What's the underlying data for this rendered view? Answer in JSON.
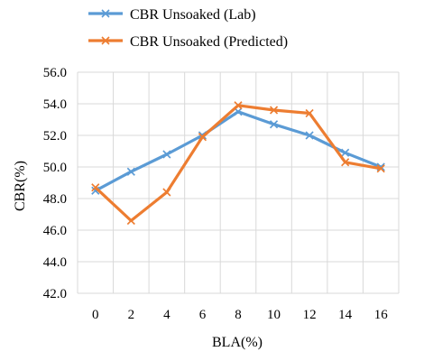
{
  "chart_data": {
    "type": "line",
    "x": [
      0,
      2,
      4,
      6,
      8,
      10,
      12,
      14,
      16
    ],
    "series": [
      {
        "name": "CBR Unsoaked (Lab)",
        "color": "#5b9bd5",
        "marker": "x",
        "values": [
          48.5,
          49.7,
          50.8,
          52.0,
          53.5,
          52.7,
          52.0,
          50.9,
          50.0
        ]
      },
      {
        "name": "CBR Unsoaked (Predicted)",
        "color": "#ed7d31",
        "marker": "x",
        "values": [
          48.7,
          46.6,
          48.4,
          51.9,
          53.9,
          53.6,
          53.4,
          50.3,
          49.9
        ]
      }
    ],
    "xlabel": "BLA(%)",
    "ylabel": "CBR(%)",
    "xticks": [
      "0",
      "2",
      "4",
      "6",
      "8",
      "10",
      "12",
      "14",
      "16"
    ],
    "yticks": [
      "42.0",
      "44.0",
      "46.0",
      "48.0",
      "50.0",
      "52.0",
      "54.0",
      "56.0"
    ],
    "ylim": [
      42,
      56
    ],
    "grid": true,
    "legend": "top"
  }
}
